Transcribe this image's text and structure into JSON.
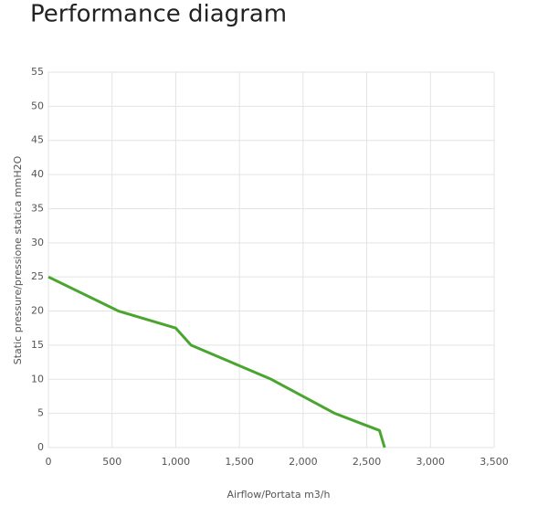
{
  "chart_data": {
    "type": "line",
    "title": "Performance diagram",
    "x_label": "Airflow/Portata m3/h",
    "y_label": "Static pressure/pressione statica mmH2O",
    "x": [
      0,
      550,
      1000,
      1120,
      1750,
      2250,
      2600,
      2640
    ],
    "values": [
      25,
      20,
      17.5,
      15,
      10,
      5,
      2.5,
      0
    ],
    "color": "#4aa52e",
    "xlim": [
      0,
      3500
    ],
    "xticks": [
      0,
      500,
      {
        "value": 1000,
        "label": "1,000"
      },
      {
        "value": 1500,
        "label": "1,500"
      },
      {
        "value": 2000,
        "label": "2,000"
      },
      {
        "value": 2500,
        "label": "2,500"
      },
      {
        "value": 3000,
        "label": "3,000"
      },
      {
        "value": 3500,
        "label": "3,500"
      }
    ],
    "ylim": [
      0,
      55
    ],
    "yticks": [
      0,
      5,
      10,
      15,
      20,
      25,
      30,
      35,
      40,
      45,
      50,
      55
    ],
    "grid": true
  }
}
